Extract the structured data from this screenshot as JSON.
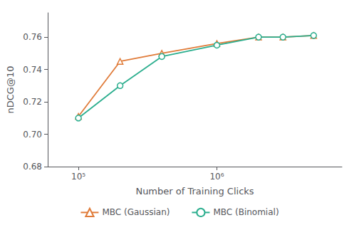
{
  "chart_data": {
    "type": "line",
    "xlabel": "Number of Training Clicks",
    "ylabel": "nDCG@10",
    "x": [
      100000,
      200000,
      400000,
      1000000,
      2000000,
      3000000,
      5000000
    ],
    "series": [
      {
        "name": "MBC (Gaussian)",
        "color": "#E07B39",
        "marker": "triangle",
        "values": [
          0.711,
          0.745,
          0.75,
          0.756,
          0.76,
          0.76,
          0.761
        ]
      },
      {
        "name": "MBC (Binomial)",
        "color": "#2BAE8E",
        "marker": "circle",
        "values": [
          0.71,
          0.73,
          0.748,
          0.755,
          0.76,
          0.76,
          0.761
        ]
      }
    ],
    "log": "x",
    "xlim": [
      60000,
      8000000
    ],
    "xticks": [
      {
        "value": 100000,
        "label": "10⁵"
      },
      {
        "value": 1000000,
        "label": "10⁶"
      }
    ],
    "ylim": [
      0.68,
      0.775
    ],
    "yticks": [
      0.68,
      {
        "value": 0.7,
        "label": "0.70"
      },
      0.72,
      0.74,
      0.76
    ],
    "grid": false,
    "legend": "bottom"
  }
}
